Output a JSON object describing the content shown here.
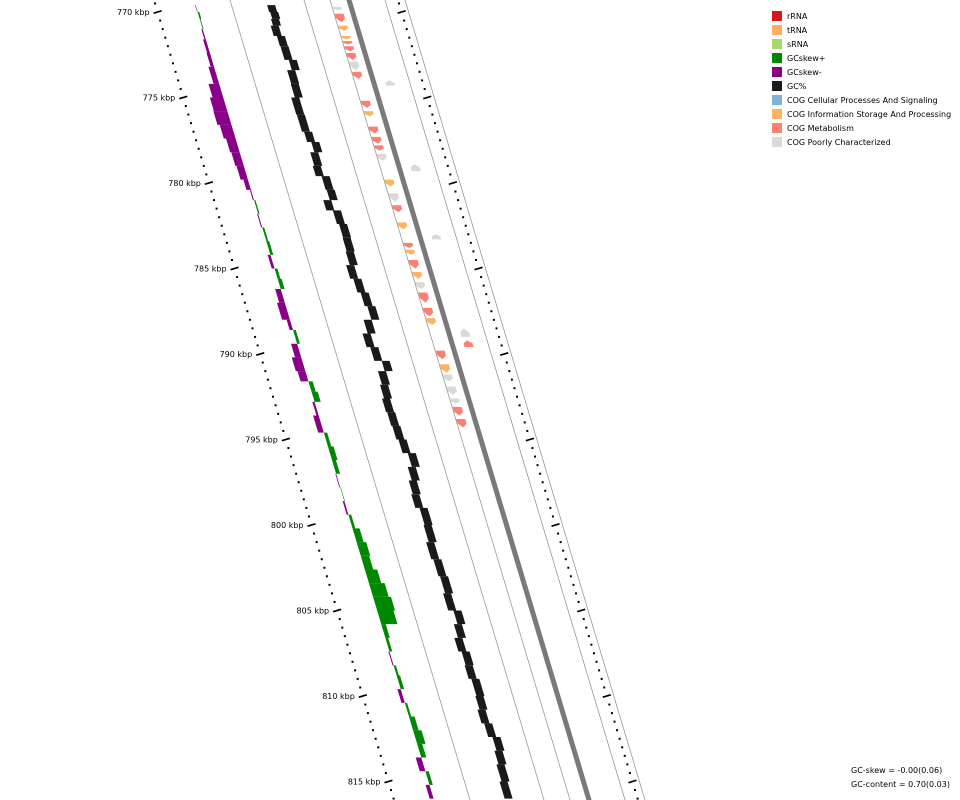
{
  "chart_data": {
    "type": "genome-map",
    "ticks": [
      {
        "kbp": 770,
        "label": "770 kbp"
      },
      {
        "kbp": 775,
        "label": "775 kbp"
      },
      {
        "kbp": 780,
        "label": "780 kbp"
      },
      {
        "kbp": 785,
        "label": "785 kbp"
      },
      {
        "kbp": 790,
        "label": "790 kbp"
      },
      {
        "kbp": 795,
        "label": "795 kbp"
      },
      {
        "kbp": 800,
        "label": "800 kbp"
      },
      {
        "kbp": 805,
        "label": "805 kbp"
      },
      {
        "kbp": 810,
        "label": "810 kbp"
      },
      {
        "kbp": 815,
        "label": "815 kbp"
      }
    ],
    "gc_skew": [
      [
        769.6,
        -0.02
      ],
      [
        770.0,
        0.06
      ],
      [
        770.4,
        0.03
      ],
      [
        771.0,
        -0.05
      ],
      [
        771.6,
        -0.1
      ],
      [
        772.4,
        -0.12
      ],
      [
        773.2,
        -0.2
      ],
      [
        774.2,
        -0.38
      ],
      [
        775.0,
        -0.48
      ],
      [
        775.8,
        -0.5
      ],
      [
        776.6,
        -0.42
      ],
      [
        777.4,
        -0.34
      ],
      [
        778.2,
        -0.3
      ],
      [
        779.0,
        -0.26
      ],
      [
        779.8,
        -0.16
      ],
      [
        780.4,
        -0.04
      ],
      [
        781.0,
        0.05
      ],
      [
        781.8,
        -0.04
      ],
      [
        782.6,
        0.07
      ],
      [
        783.4,
        0.1
      ],
      [
        784.2,
        -0.1
      ],
      [
        785.0,
        0.1
      ],
      [
        785.6,
        0.14
      ],
      [
        786.2,
        -0.2
      ],
      [
        787.0,
        -0.28
      ],
      [
        788.0,
        -0.12
      ],
      [
        788.6,
        0.1
      ],
      [
        789.4,
        -0.22
      ],
      [
        790.2,
        -0.34
      ],
      [
        791.0,
        -0.28
      ],
      [
        791.6,
        0.15
      ],
      [
        792.2,
        0.22
      ],
      [
        792.8,
        -0.08
      ],
      [
        793.6,
        -0.2
      ],
      [
        794.6,
        0.12
      ],
      [
        795.4,
        0.2
      ],
      [
        796.2,
        0.14
      ],
      [
        797.0,
        -0.03
      ],
      [
        797.8,
        0.02
      ],
      [
        798.6,
        -0.06
      ],
      [
        799.4,
        0.1
      ],
      [
        800.2,
        0.25
      ],
      [
        801.0,
        0.34
      ],
      [
        801.8,
        0.3
      ],
      [
        802.6,
        0.44
      ],
      [
        803.4,
        0.56
      ],
      [
        804.2,
        0.64
      ],
      [
        805.0,
        0.58
      ],
      [
        805.8,
        0.16
      ],
      [
        806.6,
        0.1
      ],
      [
        807.4,
        -0.04
      ],
      [
        808.2,
        0.08
      ],
      [
        808.8,
        0.12
      ],
      [
        809.6,
        -0.12
      ],
      [
        810.4,
        0.08
      ],
      [
        811.2,
        0.2
      ],
      [
        812.0,
        0.3
      ],
      [
        812.8,
        0.18
      ],
      [
        813.6,
        -0.2
      ],
      [
        814.4,
        0.12
      ],
      [
        815.2,
        -0.14
      ],
      [
        816.0,
        0.08
      ]
    ],
    "gc_content": [
      [
        769.6,
        0.06
      ],
      [
        770.0,
        0.1
      ],
      [
        770.4,
        0.05
      ],
      [
        770.8,
        -0.04
      ],
      [
        771.4,
        0.08
      ],
      [
        772.0,
        0.1
      ],
      [
        772.8,
        0.26
      ],
      [
        773.4,
        0.08
      ],
      [
        774.2,
        0.06
      ],
      [
        775.0,
        -0.08
      ],
      [
        776.0,
        -0.06
      ],
      [
        777.0,
        0.02
      ],
      [
        777.6,
        0.18
      ],
      [
        778.2,
        0.02
      ],
      [
        779.0,
        -0.04
      ],
      [
        779.6,
        0.18
      ],
      [
        780.4,
        0.22
      ],
      [
        781.0,
        -0.03
      ],
      [
        781.6,
        0.22
      ],
      [
        782.4,
        0.3
      ],
      [
        783.2,
        0.28
      ],
      [
        784.0,
        0.24
      ],
      [
        784.8,
        0.1
      ],
      [
        785.6,
        0.22
      ],
      [
        786.4,
        0.34
      ],
      [
        787.2,
        0.44
      ],
      [
        788.0,
        0.14
      ],
      [
        788.8,
        -0.06
      ],
      [
        789.6,
        0.08
      ],
      [
        790.4,
        0.36
      ],
      [
        791.0,
        0.1
      ],
      [
        791.8,
        0.02
      ],
      [
        792.6,
        -0.06
      ],
      [
        793.4,
        -0.02
      ],
      [
        794.2,
        0.02
      ],
      [
        795.0,
        0.1
      ],
      [
        795.8,
        0.3
      ],
      [
        796.6,
        0.14
      ],
      [
        797.4,
        0.02
      ],
      [
        798.2,
        -0.04
      ],
      [
        799.0,
        0.12
      ],
      [
        800.0,
        0.08
      ],
      [
        801.0,
        -0.02
      ],
      [
        802.0,
        0.06
      ],
      [
        803.0,
        0.12
      ],
      [
        804.0,
        0.04
      ],
      [
        805.0,
        0.24
      ],
      [
        805.8,
        0.1
      ],
      [
        806.6,
        -0.04
      ],
      [
        807.4,
        0.08
      ],
      [
        808.2,
        0.04
      ],
      [
        809.0,
        0.14
      ],
      [
        810.0,
        0.1
      ],
      [
        810.8,
        0.02
      ],
      [
        811.6,
        0.12
      ],
      [
        812.4,
        0.28
      ],
      [
        813.2,
        0.2
      ],
      [
        814.0,
        0.12
      ],
      [
        815.0,
        0.04
      ],
      [
        816.0,
        0.1
      ]
    ],
    "features": [
      {
        "s": 769.7,
        "e": 769.9,
        "strand": "+",
        "cog": "poor"
      },
      {
        "s": 770.1,
        "e": 770.6,
        "strand": "+",
        "cog": "metab"
      },
      {
        "s": 770.8,
        "e": 771.1,
        "strand": "+",
        "cog": "info"
      },
      {
        "s": 771.4,
        "e": 771.6,
        "strand": "+",
        "cog": "info"
      },
      {
        "s": 771.7,
        "e": 771.9,
        "strand": "+",
        "cog": "metab"
      },
      {
        "s": 772.0,
        "e": 772.3,
        "strand": "+",
        "cog": "metab"
      },
      {
        "s": 772.4,
        "e": 772.8,
        "strand": "+",
        "cog": "metab"
      },
      {
        "s": 772.9,
        "e": 773.4,
        "strand": "+",
        "cog": "poor"
      },
      {
        "s": 773.5,
        "e": 773.9,
        "strand": "+",
        "cog": "metab"
      },
      {
        "s": 774.0,
        "e": 774.3,
        "strand": "-",
        "cog": "poor"
      },
      {
        "s": 775.2,
        "e": 775.6,
        "strand": "+",
        "cog": "metab"
      },
      {
        "s": 775.8,
        "e": 776.1,
        "strand": "+",
        "cog": "info"
      },
      {
        "s": 776.7,
        "e": 777.1,
        "strand": "+",
        "cog": "metab"
      },
      {
        "s": 777.3,
        "e": 777.7,
        "strand": "+",
        "cog": "metab"
      },
      {
        "s": 777.8,
        "e": 778.1,
        "strand": "+",
        "cog": "metab"
      },
      {
        "s": 778.3,
        "e": 778.7,
        "strand": "+",
        "cog": "poor"
      },
      {
        "s": 778.9,
        "e": 779.3,
        "strand": "-",
        "cog": "poor"
      },
      {
        "s": 779.8,
        "e": 780.2,
        "strand": "+",
        "cog": "info"
      },
      {
        "s": 780.6,
        "e": 781.1,
        "strand": "+",
        "cog": "poor"
      },
      {
        "s": 781.3,
        "e": 781.7,
        "strand": "+",
        "cog": "metab"
      },
      {
        "s": 782.3,
        "e": 782.7,
        "strand": "+",
        "cog": "info"
      },
      {
        "s": 783.0,
        "e": 783.3,
        "strand": "-",
        "cog": "poor"
      },
      {
        "s": 783.5,
        "e": 783.8,
        "strand": "+",
        "cog": "metab"
      },
      {
        "s": 783.9,
        "e": 784.2,
        "strand": "+",
        "cog": "info"
      },
      {
        "s": 784.5,
        "e": 785.0,
        "strand": "+",
        "cog": "metab"
      },
      {
        "s": 785.2,
        "e": 785.6,
        "strand": "+",
        "cog": "info"
      },
      {
        "s": 785.8,
        "e": 786.2,
        "strand": "+",
        "cog": "poor"
      },
      {
        "s": 786.4,
        "e": 787.0,
        "strand": "+",
        "cog": "metab"
      },
      {
        "s": 787.3,
        "e": 787.8,
        "strand": "+",
        "cog": "metab"
      },
      {
        "s": 787.9,
        "e": 788.3,
        "strand": "+",
        "cog": "info"
      },
      {
        "s": 788.5,
        "e": 789.0,
        "strand": "-",
        "cog": "poor"
      },
      {
        "s": 789.2,
        "e": 789.6,
        "strand": "-",
        "cog": "metab"
      },
      {
        "s": 789.8,
        "e": 790.3,
        "strand": "+",
        "cog": "metab"
      },
      {
        "s": 790.6,
        "e": 791.1,
        "strand": "+",
        "cog": "info"
      },
      {
        "s": 791.2,
        "e": 791.6,
        "strand": "+",
        "cog": "poor"
      },
      {
        "s": 791.9,
        "e": 792.4,
        "strand": "+",
        "cog": "poor"
      },
      {
        "s": 792.6,
        "e": 792.9,
        "strand": "+",
        "cog": "poor"
      },
      {
        "s": 793.1,
        "e": 793.6,
        "strand": "+",
        "cog": "metab"
      },
      {
        "s": 793.8,
        "e": 794.3,
        "strand": "+",
        "cog": "metab"
      }
    ]
  },
  "legend": [
    {
      "label": "rRNA",
      "color": "#d7191c"
    },
    {
      "label": "tRNA",
      "color": "#fdae61"
    },
    {
      "label": "sRNA",
      "color": "#a6d96a"
    },
    {
      "label": "GCskew+",
      "color": "#008800"
    },
    {
      "label": "GCskew-",
      "color": "#880088"
    },
    {
      "label": "GC%",
      "color": "#1a1a1a"
    },
    {
      "label": "COG Cellular Processes And Signaling",
      "color": "#7fb2d5"
    },
    {
      "label": "COG Information Storage And Processing",
      "color": "#fdb462"
    },
    {
      "label": "COG Metabolism",
      "color": "#fb8072"
    },
    {
      "label": "COG Poorly Characterized",
      "color": "#d9d9d9"
    }
  ],
  "stats": {
    "gc_skew": "GC-skew = -0.00(0.06)",
    "gc_content": "GC-content = 0.70(0.03)"
  }
}
